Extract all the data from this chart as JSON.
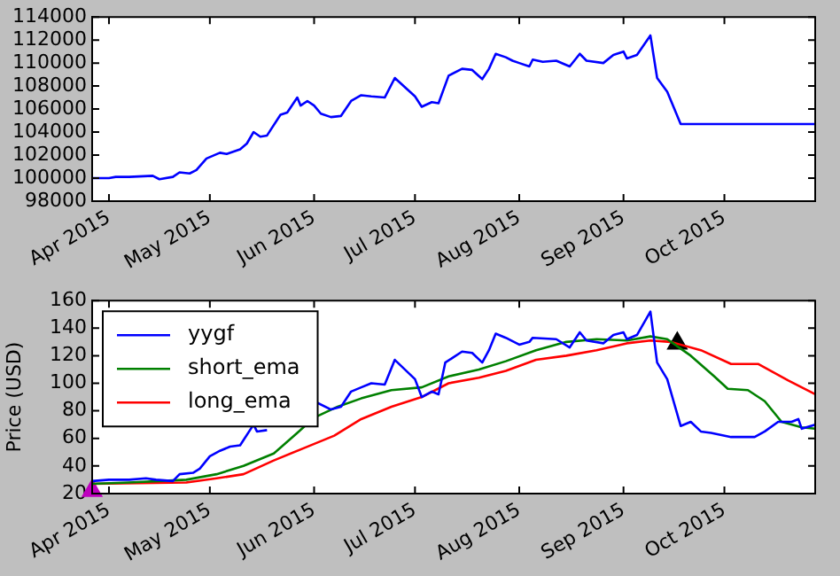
{
  "chart_data": [
    {
      "type": "line",
      "xlim": [
        "2015-03-27",
        "2015-10-28"
      ],
      "xticks": [
        {
          "value": "2015-04-01",
          "label": "Apr 2015"
        },
        {
          "value": "2015-05-01",
          "label": "May 2015"
        },
        {
          "value": "2015-06-01",
          "label": "Jun 2015"
        },
        {
          "value": "2015-07-01",
          "label": "Jul 2015"
        },
        {
          "value": "2015-08-01",
          "label": "Aug 2015"
        },
        {
          "value": "2015-09-01",
          "label": "Sep 2015"
        },
        {
          "value": "2015-10-01",
          "label": "Oct 2015"
        }
      ],
      "ylim": [
        98000,
        114000
      ],
      "yticks": [
        98000,
        100000,
        102000,
        104000,
        106000,
        108000,
        110000,
        112000,
        114000
      ],
      "grid": false,
      "legend": false,
      "series": [
        {
          "color": "#0000ff",
          "x": [
            "2015-03-27",
            "2015-04-01",
            "2015-04-03",
            "2015-04-07",
            "2015-04-14",
            "2015-04-16",
            "2015-04-20",
            "2015-04-22",
            "2015-04-25",
            "2015-04-27",
            "2015-04-30",
            "2015-05-04",
            "2015-05-06",
            "2015-05-10",
            "2015-05-12",
            "2015-05-14",
            "2015-05-16",
            "2015-05-18",
            "2015-05-22",
            "2015-05-24",
            "2015-05-27",
            "2015-05-28",
            "2015-05-30",
            "2015-06-01",
            "2015-06-03",
            "2015-06-06",
            "2015-06-09",
            "2015-06-12",
            "2015-06-15",
            "2015-06-18",
            "2015-06-22",
            "2015-06-25",
            "2015-07-01",
            "2015-07-03",
            "2015-07-06",
            "2015-07-08",
            "2015-07-11",
            "2015-07-15",
            "2015-07-18",
            "2015-07-21",
            "2015-07-23",
            "2015-07-25",
            "2015-07-28",
            "2015-07-30",
            "2015-08-01",
            "2015-08-04",
            "2015-08-05",
            "2015-08-08",
            "2015-08-12",
            "2015-08-16",
            "2015-08-19",
            "2015-08-21",
            "2015-08-26",
            "2015-08-29",
            "2015-09-01",
            "2015-09-02",
            "2015-09-05",
            "2015-09-09",
            "2015-09-11",
            "2015-09-14",
            "2015-09-18",
            "2015-10-28"
          ],
          "values": [
            100000,
            100000,
            100100,
            100100,
            100200,
            99900,
            100100,
            100500,
            100400,
            100700,
            101700,
            102200,
            102100,
            102500,
            103000,
            104000,
            103600,
            103700,
            105500,
            105700,
            107000,
            106300,
            106700,
            106300,
            105600,
            105300,
            105400,
            106700,
            107200,
            107100,
            107000,
            108700,
            107100,
            106200,
            106600,
            106500,
            108900,
            109500,
            109400,
            108600,
            109500,
            110800,
            110500,
            110200,
            110000,
            109700,
            110300,
            110100,
            110200,
            109700,
            110800,
            110200,
            110000,
            110700,
            111000,
            110400,
            110700,
            112400,
            108700,
            107500,
            104700,
            104700
          ]
        }
      ]
    },
    {
      "type": "line",
      "ylabel": "Price (USD)",
      "xlim": [
        "2015-03-27",
        "2015-10-28"
      ],
      "xticks": [
        {
          "value": "2015-04-01",
          "label": "Apr 2015"
        },
        {
          "value": "2015-05-01",
          "label": "May 2015"
        },
        {
          "value": "2015-06-01",
          "label": "Jun 2015"
        },
        {
          "value": "2015-07-01",
          "label": "Jul 2015"
        },
        {
          "value": "2015-08-01",
          "label": "Aug 2015"
        },
        {
          "value": "2015-09-01",
          "label": "Sep 2015"
        },
        {
          "value": "2015-10-01",
          "label": "Oct 2015"
        }
      ],
      "ylim": [
        20,
        160
      ],
      "yticks": [
        20,
        40,
        60,
        80,
        100,
        120,
        140,
        160
      ],
      "grid": false,
      "legend": "top left",
      "series": [
        {
          "name": "yygf",
          "color": "#0000ff",
          "x": [
            "2015-03-27",
            "2015-04-01",
            "2015-04-07",
            "2015-04-12",
            "2015-04-15",
            "2015-04-20",
            "2015-04-22",
            "2015-04-26",
            "2015-04-28",
            "2015-05-01",
            "2015-05-04",
            "2015-05-07",
            "2015-05-10",
            "2015-05-14",
            "2015-05-15",
            "2015-05-18",
            "2015-05-22",
            "2015-05-25",
            "2015-05-29",
            "2015-06-01",
            "2015-06-06",
            "2015-06-09",
            "2015-06-12",
            "2015-06-15",
            "2015-06-18",
            "2015-06-22",
            "2015-06-25",
            "2015-07-01",
            "2015-07-03",
            "2015-07-06",
            "2015-07-08",
            "2015-07-10",
            "2015-07-15",
            "2015-07-18",
            "2015-07-21",
            "2015-07-23",
            "2015-07-25",
            "2015-07-28",
            "2015-08-01",
            "2015-08-04",
            "2015-08-05",
            "2015-08-12",
            "2015-08-16",
            "2015-08-19",
            "2015-08-21",
            "2015-08-26",
            "2015-08-29",
            "2015-09-01",
            "2015-09-02",
            "2015-09-05",
            "2015-09-09",
            "2015-09-11",
            "2015-09-14",
            "2015-09-18",
            "2015-09-21",
            "2015-09-24",
            "2015-09-27",
            "2015-10-03",
            "2015-10-10",
            "2015-10-13",
            "2015-10-17",
            "2015-10-21",
            "2015-10-23",
            "2015-10-24",
            "2015-10-28"
          ],
          "values": [
            29,
            30,
            30,
            31,
            30,
            29,
            34,
            35,
            38,
            47,
            51,
            54,
            55,
            70,
            65,
            66,
            null,
            null,
            null,
            87,
            81,
            83,
            94,
            97,
            100,
            99,
            117,
            103,
            90,
            94,
            92,
            115,
            123,
            122,
            115,
            124,
            136,
            133,
            128,
            130,
            133,
            132,
            126,
            137,
            131,
            129,
            135,
            137,
            132,
            135,
            152,
            115,
            103,
            69,
            72,
            65,
            64,
            61,
            61,
            65,
            72,
            72,
            74,
            67,
            70
          ]
        },
        {
          "name": "short_ema",
          "color": "#008000",
          "x": [
            "2015-03-27",
            "2015-04-07",
            "2015-04-24",
            "2015-05-03",
            "2015-05-11",
            "2015-05-20",
            "2015-05-27",
            "2015-06-01",
            "2015-06-08",
            "2015-06-15",
            "2015-06-24",
            "2015-07-03",
            "2015-07-11",
            "2015-07-20",
            "2015-07-28",
            "2015-08-06",
            "2015-08-15",
            "2015-08-24",
            "2015-09-02",
            "2015-09-09",
            "2015-09-14",
            "2015-09-21",
            "2015-09-28",
            "2015-10-02",
            "2015-10-08",
            "2015-10-13",
            "2015-10-18",
            "2015-10-24",
            "2015-10-28"
          ],
          "values": [
            27,
            28,
            30,
            34,
            40,
            49,
            64,
            75,
            83,
            89,
            95,
            97,
            105,
            110,
            116,
            124,
            130,
            132,
            131,
            134,
            132,
            120,
            105,
            96,
            95,
            87,
            72,
            68,
            67
          ]
        },
        {
          "name": "long_ema",
          "color": "#ff0000",
          "x": [
            "2015-03-27",
            "2015-04-24",
            "2015-05-03",
            "2015-05-11",
            "2015-05-20",
            "2015-05-29",
            "2015-06-07",
            "2015-06-15",
            "2015-06-24",
            "2015-07-03",
            "2015-07-11",
            "2015-07-20",
            "2015-07-28",
            "2015-08-06",
            "2015-08-15",
            "2015-08-24",
            "2015-09-02",
            "2015-09-09",
            "2015-09-15",
            "2015-09-24",
            "2015-10-03",
            "2015-10-11",
            "2015-10-20",
            "2015-10-28"
          ],
          "values": [
            27,
            28,
            31,
            34,
            44,
            53,
            62,
            74,
            83,
            90,
            100,
            104,
            109,
            117,
            120,
            124,
            129,
            131,
            130,
            124,
            114,
            114,
            102,
            92
          ]
        },
        {
          "type": "scatter",
          "marker": "triangle",
          "color": "#bf00bf",
          "x": [
            "2015-03-27"
          ],
          "values": [
            22
          ]
        },
        {
          "type": "scatter",
          "marker": "triangle",
          "color": "#000000",
          "x": [
            "2015-09-17"
          ],
          "values": [
            129
          ]
        }
      ]
    }
  ]
}
